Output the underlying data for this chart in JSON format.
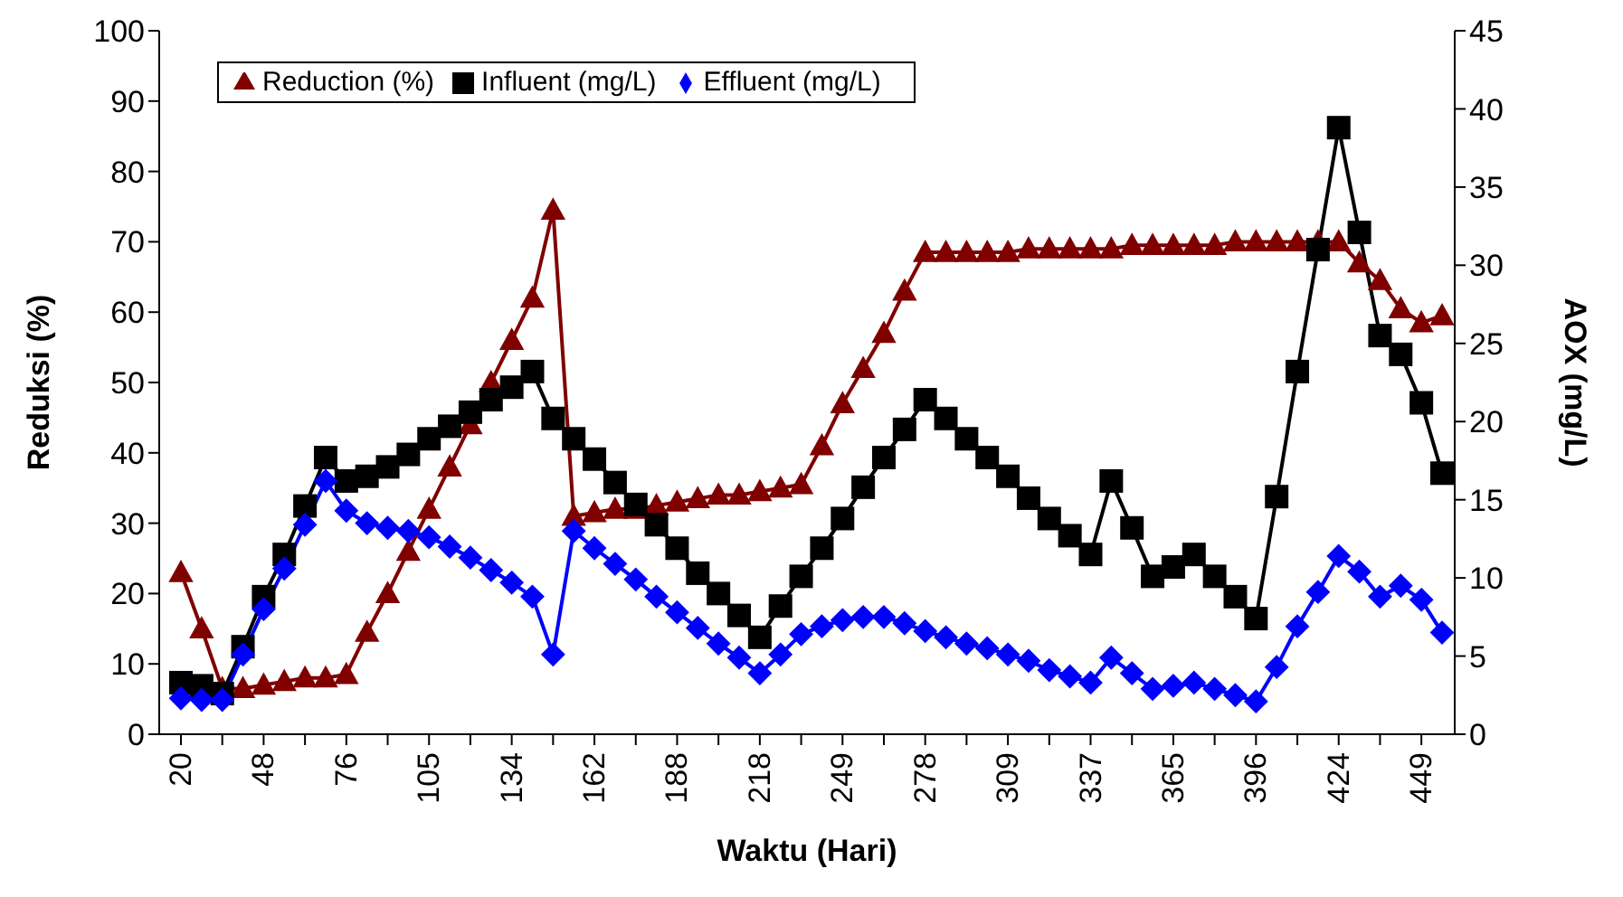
{
  "chart_data": {
    "type": "line",
    "xlabel": "Waktu (Hari)",
    "ylabel": "Reduksi (%)",
    "y2label": "AOX (mg/L)",
    "categories": [
      "20",
      null,
      null,
      null,
      "48",
      null,
      null,
      null,
      "76",
      null,
      null,
      null,
      "105",
      null,
      null,
      null,
      "134",
      null,
      null,
      null,
      "162",
      null,
      null,
      null,
      "188",
      null,
      null,
      null,
      "218",
      null,
      null,
      null,
      "249",
      null,
      null,
      null,
      "278",
      null,
      null,
      null,
      "309",
      null,
      null,
      null,
      "337",
      null,
      null,
      null,
      "365",
      null,
      null,
      null,
      "396",
      null,
      null,
      null,
      "424",
      null,
      null,
      null,
      "449",
      null
    ],
    "ylim": [
      0,
      100
    ],
    "yticks": [
      0,
      10,
      20,
      30,
      40,
      50,
      60,
      70,
      80,
      90,
      100
    ],
    "y2lim": [
      0,
      45
    ],
    "y2ticks": [
      0,
      5,
      10,
      15,
      20,
      25,
      30,
      35,
      40,
      45
    ],
    "grid": false,
    "legend": "top left",
    "line_style": "solid",
    "series": [
      {
        "name": "Reduction (%)",
        "color": "#800000",
        "marker": "triangle",
        "values": [
          23,
          15,
          6.5,
          6.5,
          7,
          7.5,
          8,
          8,
          8.5,
          14.5,
          20,
          26,
          32,
          38,
          44,
          50,
          56,
          62,
          74.5,
          31,
          31.5,
          32,
          32,
          32.5,
          33,
          33.5,
          34,
          34,
          34.5,
          35,
          35.5,
          41,
          47,
          52,
          57,
          63,
          68.5,
          68.5,
          68.5,
          68.5,
          68.5,
          69,
          69,
          69,
          69,
          69,
          69.5,
          69.5,
          69.5,
          69.5,
          69.5,
          70,
          70,
          70,
          70,
          70,
          70,
          67,
          64.5,
          60.5,
          58.5,
          59.5
        ]
      },
      {
        "name": "Influent (mg/L)",
        "color": "#000000",
        "marker": "square",
        "axis": "y2",
        "values": [
          3.3,
          3.1,
          2.6,
          5.6,
          8.8,
          11.5,
          14.6,
          17.7,
          16.2,
          16.5,
          17.1,
          17.9,
          18.9,
          19.7,
          20.6,
          21.4,
          22.2,
          23.2,
          20.2,
          18.9,
          17.6,
          16.1,
          14.7,
          13.4,
          11.9,
          10.3,
          9.0,
          7.6,
          6.2,
          8.2,
          10.1,
          11.9,
          13.8,
          15.8,
          17.7,
          19.5,
          21.4,
          20.2,
          18.9,
          17.7,
          16.5,
          15.1,
          13.8,
          12.7,
          11.5,
          16.2,
          13.2,
          10.1,
          10.7,
          11.5,
          10.1,
          8.8,
          7.4,
          15.2,
          23.2,
          31.0,
          38.8,
          32.1,
          25.5,
          24.3,
          21.2,
          16.7
        ]
      },
      {
        "name": "Effluent (mg/L)",
        "color": "#0000ff",
        "marker": "diamond",
        "axis": "y2",
        "values": [
          2.3,
          2.2,
          2.2,
          5.1,
          8.0,
          10.6,
          13.4,
          16.2,
          14.3,
          13.5,
          13.2,
          13.0,
          12.6,
          12.0,
          11.3,
          10.5,
          9.7,
          8.8,
          5.1,
          13.0,
          11.9,
          10.9,
          9.9,
          8.8,
          7.8,
          6.8,
          5.8,
          4.9,
          3.9,
          5.1,
          6.4,
          6.9,
          7.3,
          7.5,
          7.5,
          7.1,
          6.6,
          6.2,
          5.8,
          5.5,
          5.1,
          4.7,
          4.1,
          3.7,
          3.3,
          4.9,
          3.9,
          2.9,
          3.1,
          3.3,
          2.9,
          2.5,
          2.1,
          4.3,
          6.9,
          9.1,
          11.4,
          10.4,
          8.8,
          9.5,
          8.6,
          6.5
        ]
      }
    ]
  }
}
